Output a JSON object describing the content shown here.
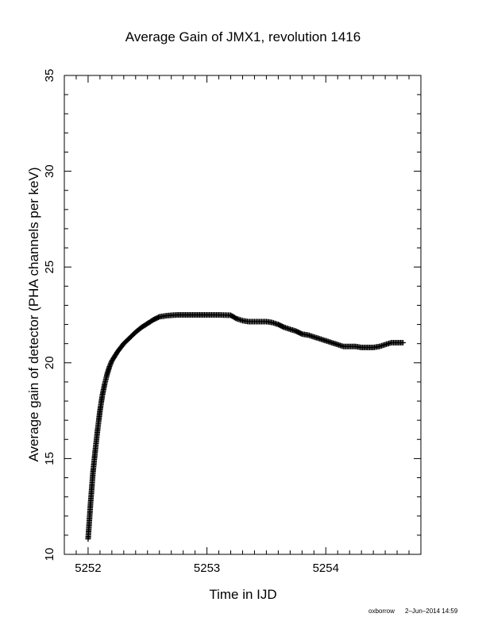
{
  "chart_data": {
    "type": "scatter",
    "marker": "plus",
    "title": "Average Gain of JMX1, revolution 1416",
    "xlabel": "Time in IJD",
    "ylabel": "Average gain of detector (PHA channels per keV)",
    "xlim": [
      5251.8,
      5254.8
    ],
    "ylim": [
      10,
      35
    ],
    "xticks": [
      5252,
      5253,
      5254
    ],
    "xtick_labels": [
      "5252",
      "5253",
      "5254"
    ],
    "yticks": [
      10,
      15,
      20,
      25,
      30,
      35
    ],
    "ytick_labels": [
      "10",
      "15",
      "20",
      "25",
      "30",
      "35"
    ],
    "grid": false,
    "series": [
      {
        "x": [
          5252.0,
          5252.02,
          5252.04,
          5252.06,
          5252.08,
          5252.1,
          5252.12,
          5252.14,
          5252.16,
          5252.18,
          5252.2,
          5252.25,
          5252.3,
          5252.35,
          5252.4,
          5252.45,
          5252.5,
          5252.55,
          5252.6,
          5252.65,
          5252.7,
          5252.75,
          5252.8,
          5252.9,
          5253.0,
          5253.1,
          5253.2,
          5253.25,
          5253.3,
          5253.35,
          5253.4,
          5253.5,
          5253.55,
          5253.6,
          5253.65,
          5253.7,
          5253.75,
          5253.8,
          5253.85,
          5253.9,
          5253.95,
          5254.0,
          5254.05,
          5254.1,
          5254.15,
          5254.2,
          5254.25,
          5254.3,
          5254.35,
          5254.4,
          5254.45,
          5254.5,
          5254.55,
          5254.6,
          5254.65
        ],
        "y": [
          10.8,
          12.6,
          14.2,
          15.4,
          16.5,
          17.5,
          18.3,
          18.9,
          19.4,
          19.8,
          20.1,
          20.6,
          21.0,
          21.3,
          21.6,
          21.85,
          22.05,
          22.25,
          22.4,
          22.45,
          22.48,
          22.5,
          22.5,
          22.5,
          22.5,
          22.5,
          22.48,
          22.3,
          22.2,
          22.15,
          22.15,
          22.15,
          22.1,
          22.0,
          21.85,
          21.75,
          21.65,
          21.5,
          21.45,
          21.35,
          21.25,
          21.15,
          21.05,
          20.95,
          20.85,
          20.85,
          20.85,
          20.8,
          20.8,
          20.8,
          20.85,
          20.95,
          21.05,
          21.05,
          21.05
        ]
      }
    ]
  },
  "footer": {
    "credit": "oxborrow",
    "date": "2–Jun–2014 14:59"
  }
}
